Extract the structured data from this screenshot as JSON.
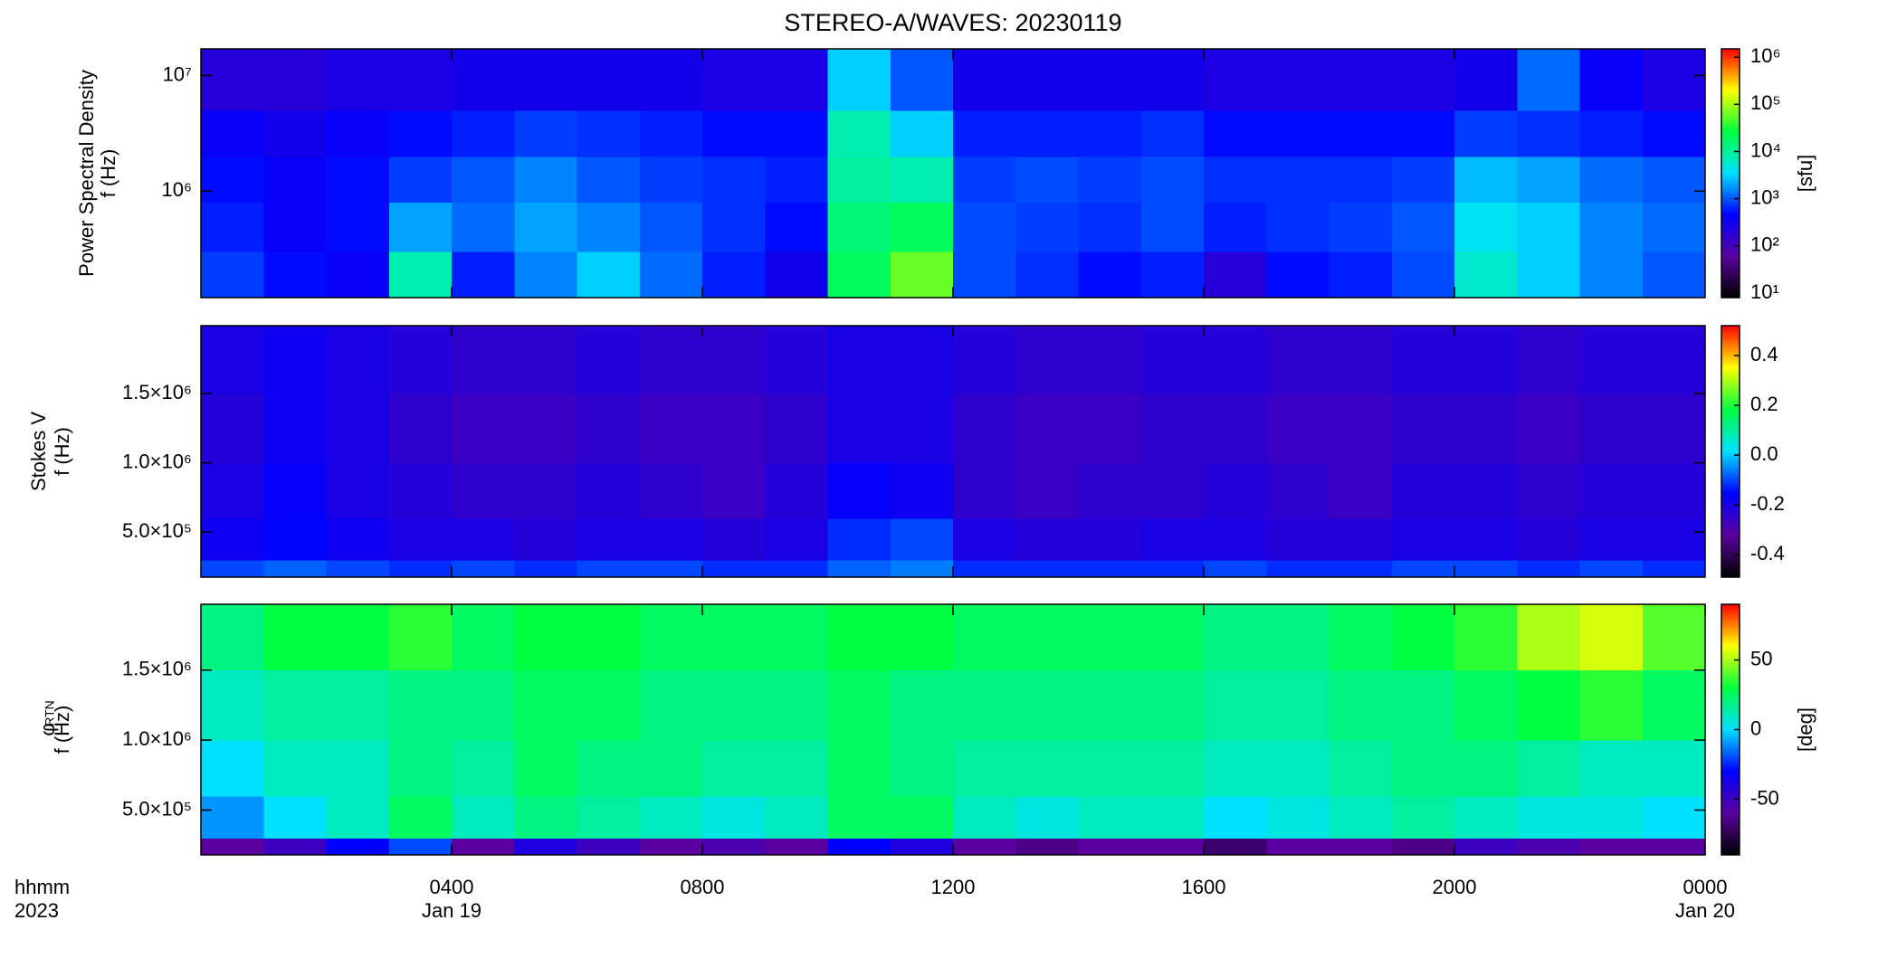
{
  "title": "STEREO-A/WAVES: 20230119",
  "chart_data": [
    {
      "type": "heatmap",
      "ylabel": [
        "Power Spectral Density",
        "f (Hz)"
      ],
      "ylog": true,
      "ylim": [
        120000,
        17000000
      ],
      "yticks": [
        {
          "value": 1000000,
          "label": "10⁶"
        },
        {
          "value": 10000000,
          "label": "10⁷"
        }
      ],
      "xlim": [
        0,
        24
      ],
      "xticks": [
        4,
        8,
        12,
        16,
        20
      ],
      "x_bins": [
        0,
        1,
        2,
        3,
        4,
        5,
        6,
        7,
        8,
        9,
        10,
        11,
        12,
        13,
        14,
        15,
        16,
        17,
        18,
        19,
        20,
        21,
        22,
        23,
        24
      ],
      "y_bins": [
        120000,
        300000,
        800000,
        2000000,
        5000000,
        17000000
      ],
      "z": [
        [
          800,
          500,
          400,
          8000,
          600,
          1500,
          3000,
          1200,
          600,
          300,
          20000,
          60000,
          900,
          700,
          500,
          600,
          200,
          500,
          600,
          900,
          6000,
          3000,
          1500,
          1000
        ],
        [
          600,
          400,
          500,
          2000,
          1200,
          2000,
          1500,
          1000,
          700,
          500,
          15000,
          20000,
          900,
          800,
          700,
          900,
          600,
          700,
          800,
          1000,
          4000,
          3000,
          1500,
          1200
        ],
        [
          500,
          400,
          500,
          800,
          1000,
          1500,
          1000,
          800,
          700,
          600,
          10000,
          8000,
          800,
          900,
          800,
          900,
          700,
          700,
          700,
          800,
          2500,
          2000,
          1200,
          1000
        ],
        [
          400,
          300,
          400,
          500,
          600,
          800,
          700,
          600,
          500,
          500,
          8000,
          3000,
          600,
          600,
          600,
          700,
          500,
          500,
          500,
          500,
          800,
          700,
          600,
          500
        ],
        [
          200,
          200,
          250,
          250,
          300,
          300,
          300,
          300,
          250,
          250,
          3000,
          1000,
          300,
          300,
          300,
          300,
          250,
          250,
          250,
          250,
          300,
          1200,
          400,
          250
        ]
      ],
      "clog": true,
      "clim": [
        8,
        1500000
      ],
      "cticks": [
        {
          "value": 10,
          "label": "10¹"
        },
        {
          "value": 100,
          "label": "10²"
        },
        {
          "value": 1000,
          "label": "10³"
        },
        {
          "value": 10000,
          "label": "10⁴"
        },
        {
          "value": 100000,
          "label": "10⁵"
        },
        {
          "value": 1000000,
          "label": "10⁶"
        }
      ],
      "clabel": "[sfu]",
      "colors": [
        "#000000",
        "#5a00a0",
        "#0000ff",
        "#00e0ff",
        "#00ff40",
        "#ffff00",
        "#ff0000"
      ]
    },
    {
      "type": "heatmap",
      "ylabel": [
        "Stokes V",
        "f (Hz)"
      ],
      "ylog": false,
      "ylim": [
        175000,
        1990000
      ],
      "yticks": [
        {
          "value": 500000,
          "label": "5.0×10⁵"
        },
        {
          "value": 1000000,
          "label": "1.0×10⁶"
        },
        {
          "value": 1500000,
          "label": "1.5×10⁶"
        }
      ],
      "xlim": [
        0,
        24
      ],
      "xticks": [
        4,
        8,
        12,
        16,
        20
      ],
      "x_bins": [
        0,
        1,
        2,
        3,
        4,
        5,
        6,
        7,
        8,
        9,
        10,
        11,
        12,
        13,
        14,
        15,
        16,
        17,
        18,
        19,
        20,
        21,
        22,
        23,
        24
      ],
      "y_bins": [
        175000,
        300000,
        600000,
        1000000,
        1500000,
        1990000
      ],
      "z": [
        [
          -0.1,
          -0.08,
          -0.1,
          -0.12,
          -0.1,
          -0.12,
          -0.1,
          -0.1,
          -0.12,
          -0.12,
          -0.08,
          -0.06,
          -0.12,
          -0.12,
          -0.12,
          -0.12,
          -0.1,
          -0.12,
          -0.12,
          -0.1,
          -0.1,
          -0.12,
          -0.1,
          -0.12
        ],
        [
          -0.18,
          -0.15,
          -0.18,
          -0.2,
          -0.2,
          -0.22,
          -0.2,
          -0.2,
          -0.22,
          -0.2,
          -0.12,
          -0.1,
          -0.2,
          -0.22,
          -0.22,
          -0.2,
          -0.2,
          -0.22,
          -0.22,
          -0.2,
          -0.2,
          -0.22,
          -0.2,
          -0.2
        ],
        [
          -0.2,
          -0.16,
          -0.2,
          -0.22,
          -0.24,
          -0.24,
          -0.22,
          -0.24,
          -0.26,
          -0.22,
          -0.16,
          -0.18,
          -0.24,
          -0.26,
          -0.24,
          -0.24,
          -0.22,
          -0.24,
          -0.26,
          -0.22,
          -0.22,
          -0.24,
          -0.22,
          -0.22
        ],
        [
          -0.22,
          -0.18,
          -0.2,
          -0.24,
          -0.26,
          -0.26,
          -0.24,
          -0.26,
          -0.26,
          -0.24,
          -0.2,
          -0.2,
          -0.24,
          -0.26,
          -0.26,
          -0.24,
          -0.24,
          -0.26,
          -0.26,
          -0.24,
          -0.24,
          -0.26,
          -0.24,
          -0.24
        ],
        [
          -0.2,
          -0.18,
          -0.2,
          -0.22,
          -0.24,
          -0.24,
          -0.22,
          -0.24,
          -0.24,
          -0.22,
          -0.2,
          -0.2,
          -0.22,
          -0.24,
          -0.24,
          -0.22,
          -0.22,
          -0.24,
          -0.24,
          -0.22,
          -0.22,
          -0.24,
          -0.22,
          -0.22
        ]
      ],
      "clog": false,
      "clim": [
        -0.49,
        0.52
      ],
      "cticks": [
        -0.4,
        -0.2,
        {
          "value": 0,
          "label": "0.0"
        },
        0.2,
        0.4
      ],
      "colors": [
        "#000000",
        "#5a00a0",
        "#0000ff",
        "#00e0ff",
        "#00ff40",
        "#ffff00",
        "#ff0000"
      ]
    },
    {
      "type": "heatmap",
      "ylabel": [
        "φ",
        "f (Hz)"
      ],
      "ylabel_subscript": "RTN",
      "ylog": false,
      "ylim": [
        180000,
        1970000
      ],
      "yticks": [
        {
          "value": 500000,
          "label": "5.0×10⁵"
        },
        {
          "value": 1000000,
          "label": "1.0×10⁶"
        },
        {
          "value": 1500000,
          "label": "1.5×10⁶"
        }
      ],
      "xlim": [
        0,
        24
      ],
      "xticks": [
        {
          "value": 4,
          "label": "0400"
        },
        {
          "value": 8,
          "label": "0800"
        },
        {
          "value": 12,
          "label": "1200"
        },
        {
          "value": 16,
          "label": "1600"
        },
        {
          "value": 20,
          "label": "2000"
        },
        {
          "value": 24,
          "label": "0000"
        }
      ],
      "xtick_dates": [
        {
          "value": 4,
          "label": "Jan 19"
        },
        {
          "value": 24,
          "label": "Jan 20"
        }
      ],
      "xlabel": "hhmm",
      "xlabel_year": "2023",
      "x_bins": [
        0,
        1,
        2,
        3,
        4,
        5,
        6,
        7,
        8,
        9,
        10,
        11,
        12,
        13,
        14,
        15,
        16,
        17,
        18,
        19,
        20,
        21,
        22,
        23,
        24
      ],
      "y_bins": [
        180000,
        300000,
        600000,
        1000000,
        1500000,
        1970000
      ],
      "z": [
        [
          -60,
          -50,
          -30,
          -20,
          -60,
          -40,
          -50,
          -60,
          -55,
          -60,
          -30,
          -40,
          -60,
          -65,
          -60,
          -60,
          -70,
          -60,
          -60,
          -65,
          -50,
          -55,
          -60,
          -60
        ],
        [
          -10,
          0,
          10,
          25,
          10,
          20,
          15,
          10,
          5,
          10,
          25,
          25,
          10,
          5,
          10,
          10,
          0,
          5,
          10,
          15,
          10,
          5,
          5,
          0
        ],
        [
          0,
          10,
          10,
          20,
          15,
          25,
          20,
          20,
          15,
          15,
          25,
          20,
          15,
          15,
          15,
          15,
          10,
          10,
          15,
          20,
          20,
          15,
          10,
          10
        ],
        [
          10,
          15,
          15,
          20,
          20,
          25,
          25,
          20,
          20,
          20,
          25,
          20,
          20,
          20,
          20,
          20,
          15,
          15,
          20,
          20,
          25,
          30,
          35,
          25
        ],
        [
          20,
          30,
          30,
          35,
          25,
          30,
          30,
          25,
          25,
          25,
          30,
          30,
          25,
          25,
          25,
          25,
          20,
          20,
          25,
          30,
          35,
          50,
          55,
          40
        ]
      ],
      "clog": false,
      "clim": [
        -90,
        90
      ],
      "cticks": [
        -50,
        0,
        50
      ],
      "clabel": "[deg]",
      "colors": [
        "#000000",
        "#5a00a0",
        "#0000ff",
        "#00e0ff",
        "#00ff40",
        "#ffff00",
        "#ff0000"
      ]
    }
  ]
}
